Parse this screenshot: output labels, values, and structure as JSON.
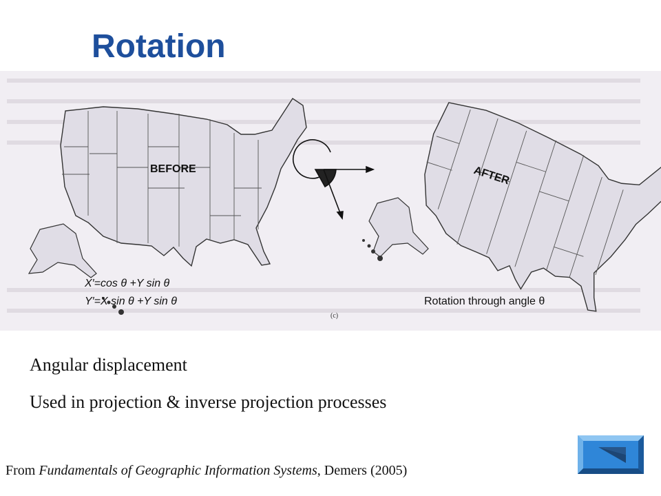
{
  "slide": {
    "title": "Rotation",
    "bullets": [
      "Angular displacement",
      "Used in projection & inverse projection processes"
    ],
    "citation": {
      "prefix": "From ",
      "book": "Fundamentals of Geographic Information Systems",
      "suffix": ", Demers (2005)"
    }
  },
  "figure": {
    "before_label": "BEFORE",
    "after_label": "AFTER",
    "formula_x": "X′=cos θ +Y sin θ",
    "formula_y": "Y′=X sin θ +Y sin θ",
    "caption": "Rotation through angle θ",
    "panel_label": "(c)"
  },
  "colors": {
    "title": "#1e4f9c",
    "figure_bg": "#f1eef3",
    "map_fill": "#e0dde6",
    "nav_button": "#2f86d8"
  },
  "icons": {
    "nav": "play-back-triangle-icon"
  }
}
